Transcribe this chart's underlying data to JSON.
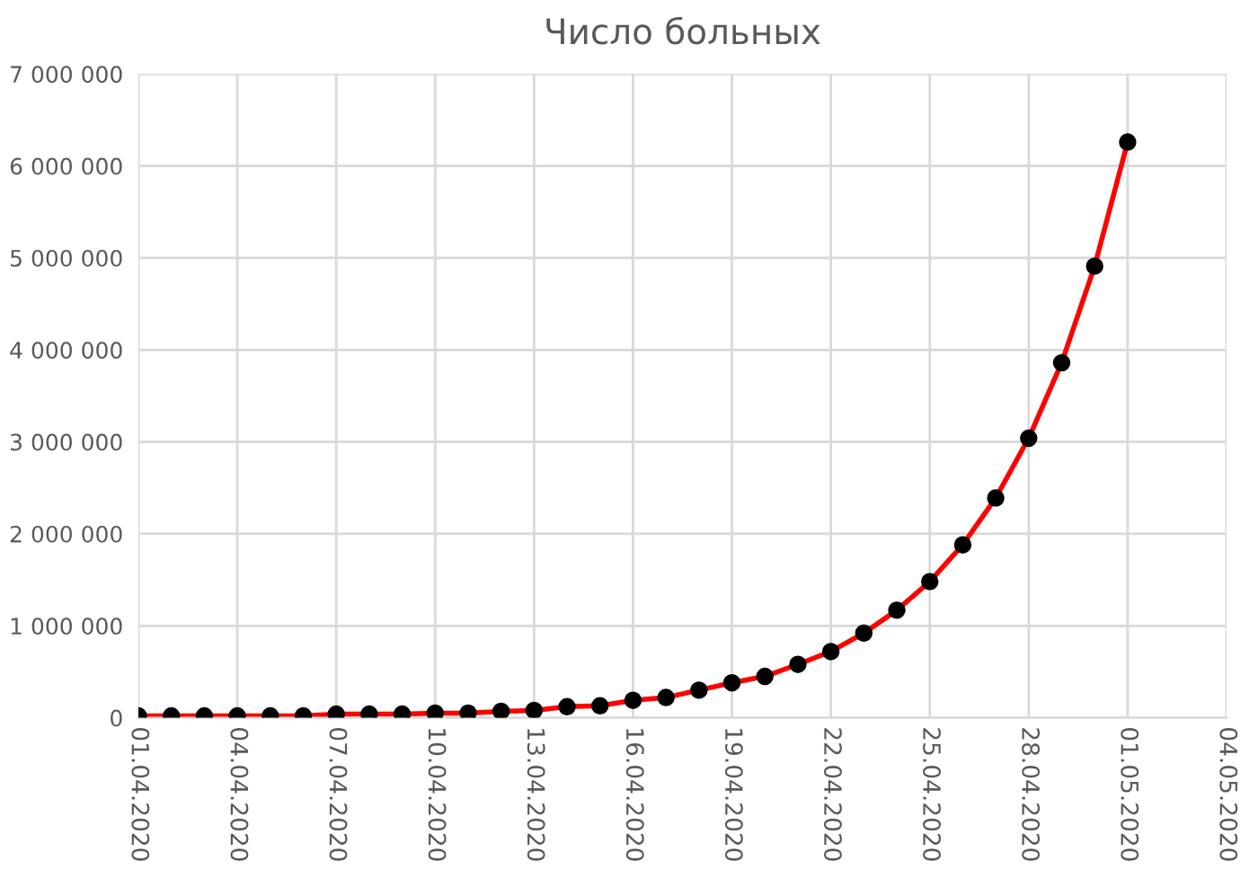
{
  "chart_data": {
    "type": "line",
    "title": "Число больных",
    "x": [
      "2020-04-01",
      "2020-04-02",
      "2020-04-03",
      "2020-04-04",
      "2020-04-05",
      "2020-04-06",
      "2020-04-07",
      "2020-04-08",
      "2020-04-09",
      "2020-04-10",
      "2020-04-11",
      "2020-04-12",
      "2020-04-13",
      "2020-04-14",
      "2020-04-15",
      "2020-04-16",
      "2020-04-17",
      "2020-04-18",
      "2020-04-19",
      "2020-04-20",
      "2020-04-21",
      "2020-04-22",
      "2020-04-23",
      "2020-04-24",
      "2020-04-25",
      "2020-04-26",
      "2020-04-27",
      "2020-04-28",
      "2020-04-29",
      "2020-04-30",
      "2020-05-01"
    ],
    "series": [
      {
        "color": "#ff0000",
        "colors": [
          "#000000",
          "#000000",
          "#000000",
          "#000000",
          "#000000",
          "#000000",
          "#000000",
          "#000000",
          "#000000",
          "#000000",
          "#000000",
          "#000000",
          "#000000",
          "#000000",
          "#000000",
          "#000000",
          "#000000",
          "#000000",
          "#000000",
          "#000000",
          "#000000",
          "#000000",
          "#000000",
          "#000000",
          "#000000",
          "#000000",
          "#000000",
          "#000000",
          "#000000",
          "#000000",
          "#000000"
        ],
        "values": [
          20000,
          20000,
          20000,
          20000,
          20000,
          20000,
          40000,
          40000,
          40000,
          50000,
          50000,
          70000,
          80000,
          120000,
          130000,
          190000,
          220000,
          300000,
          380000,
          450000,
          580000,
          720000,
          920000,
          1170000,
          1480000,
          1880000,
          2390000,
          3040000,
          3860000,
          4910000,
          6260000
        ]
      }
    ],
    "xlim": [
      "2020-04-01",
      "2020-05-04"
    ],
    "xticks": [
      {
        "value": "2020-04-01",
        "label": "01.04.2020"
      },
      {
        "value": "2020-04-04",
        "label": "04.04.2020"
      },
      {
        "value": "2020-04-07",
        "label": "07.04.2020"
      },
      {
        "value": "2020-04-10",
        "label": "10.04.2020"
      },
      {
        "value": "2020-04-13",
        "label": "13.04.2020"
      },
      {
        "value": "2020-04-16",
        "label": "16.04.2020"
      },
      {
        "value": "2020-04-19",
        "label": "19.04.2020"
      },
      {
        "value": "2020-04-22",
        "label": "22.04.2020"
      },
      {
        "value": "2020-04-25",
        "label": "25.04.2020"
      },
      {
        "value": "2020-04-28",
        "label": "28.04.2020"
      },
      {
        "value": "2020-05-01",
        "label": "01.05.2020"
      },
      {
        "value": "2020-05-04",
        "label": "04.05.2020"
      }
    ],
    "ylim": [
      0,
      7000000
    ],
    "yticks": [
      0,
      {
        "value": 1000000,
        "label": "1 000 000"
      },
      {
        "value": 2000000,
        "label": "2 000 000"
      },
      {
        "value": 3000000,
        "label": "3 000 000"
      },
      {
        "value": 4000000,
        "label": "4 000 000"
      },
      {
        "value": 5000000,
        "label": "5 000 000"
      },
      {
        "value": 6000000,
        "label": "6 000 000"
      },
      {
        "value": 7000000,
        "label": "7 000 000"
      }
    ],
    "grid": true,
    "marker": "circle",
    "line_style": "solid"
  }
}
